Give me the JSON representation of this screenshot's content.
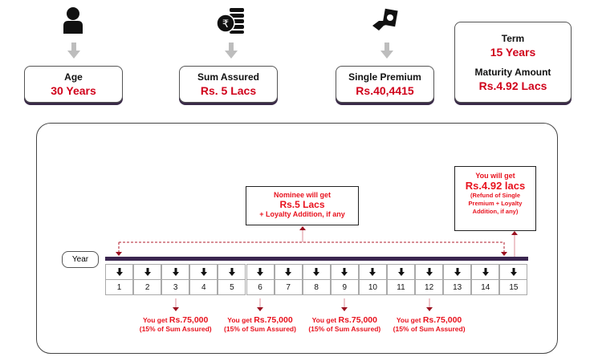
{
  "top": {
    "age": {
      "label": "Age",
      "value": "30 Years",
      "icon": "person-icon"
    },
    "sum_assured": {
      "label": "Sum Assured",
      "value": "Rs. 5 Lacs",
      "icon": "rupee-coins-icon"
    },
    "single_premium": {
      "label": "Single Premium",
      "value": "Rs.40,4415",
      "icon": "hand-cash-icon"
    },
    "term": {
      "label": "Term",
      "value": "15 Years",
      "maturity_label": "Maturity Amount",
      "maturity_value": "Rs.4.92 Lacs"
    }
  },
  "timeline": {
    "year_label": "Year",
    "years": [
      "1",
      "2",
      "3",
      "4",
      "5",
      "6",
      "7",
      "8",
      "9",
      "10",
      "11",
      "12",
      "13",
      "14",
      "15"
    ],
    "nominee": {
      "line1": "Nominee will get",
      "line2": "Rs.5 Lacs",
      "line3": "+ Loyalty Addition, if any"
    },
    "maturity": {
      "line1": "You will get",
      "line2": "Rs.4.92 lacs",
      "line3": "(Refund of Single Premium + Loyalty Addition, if any)"
    },
    "payouts": [
      {
        "year": "3",
        "prefix": "You get",
        "amount": "Rs.75,000",
        "note": "(15% of Sum Assured)"
      },
      {
        "year": "6",
        "prefix": "You get",
        "amount": "Rs.75,000",
        "note": "(15% of Sum Assured)"
      },
      {
        "year": "9",
        "prefix": "You get",
        "amount": "Rs.75,000",
        "note": "(15% of Sum Assured)"
      },
      {
        "year": "12",
        "prefix": "You get",
        "amount": "Rs.75,000",
        "note": "(15% of Sum Assured)"
      }
    ]
  },
  "colors": {
    "accent": "#d0021b",
    "bar": "#3b2650",
    "arrow_gray": "#bdbdbd",
    "dark_red": "#9b1020"
  }
}
